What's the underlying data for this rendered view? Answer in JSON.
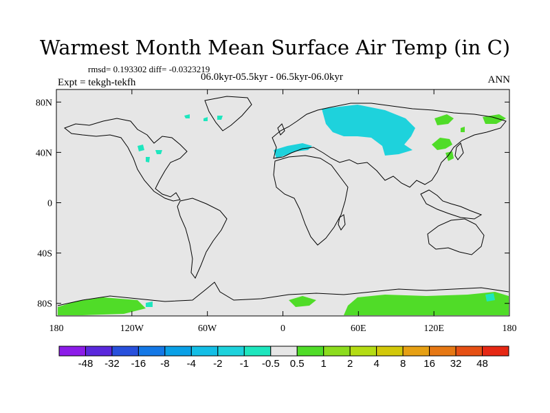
{
  "title": "Warmest Month Mean Surface Air Temp (in C)",
  "stats": "rmsd= 0.193302 diff= -0.0323219",
  "subtitle": "06.0kyr-05.5kyr - 06.5kyr-06.0kyr",
  "expt": "Expt = tekgh-tekfh",
  "period": "ANN",
  "map": {
    "projection": "cylindrical-equidistant",
    "lon_range": [
      -180,
      180
    ],
    "lat_range": [
      -90,
      90
    ],
    "background_color": "#e6e6e6",
    "coastline_color": "#000000",
    "lat_ticks": [
      {
        "value": 80,
        "label": "80N"
      },
      {
        "value": 40,
        "label": "40N"
      },
      {
        "value": 0,
        "label": "0"
      },
      {
        "value": -40,
        "label": "40S"
      },
      {
        "value": -80,
        "label": "80S"
      }
    ],
    "lon_ticks": [
      {
        "value": -180,
        "label": "180"
      },
      {
        "value": -120,
        "label": "120W"
      },
      {
        "value": -60,
        "label": "60W"
      },
      {
        "value": 0,
        "label": "0"
      },
      {
        "value": 60,
        "label": "60E"
      },
      {
        "value": 120,
        "label": "120E"
      },
      {
        "value": 180,
        "label": "180"
      }
    ]
  },
  "colorbar": {
    "labels": [
      "-48",
      "-32",
      "-16",
      "-8",
      "-4",
      "-2",
      "-1",
      "-0.5",
      "0.5",
      "1",
      "2",
      "4",
      "8",
      "16",
      "32",
      "48"
    ],
    "colors": [
      "#8c1ce8",
      "#5a28dc",
      "#2850dc",
      "#1478e6",
      "#0aa0e6",
      "#14bee6",
      "#1ed2dc",
      "#1ee6be",
      "#e6e6e6",
      "#50dc28",
      "#8cdc1e",
      "#b4dc14",
      "#d2c80a",
      "#e6a014",
      "#e67814",
      "#e65014",
      "#e62814"
    ]
  }
}
